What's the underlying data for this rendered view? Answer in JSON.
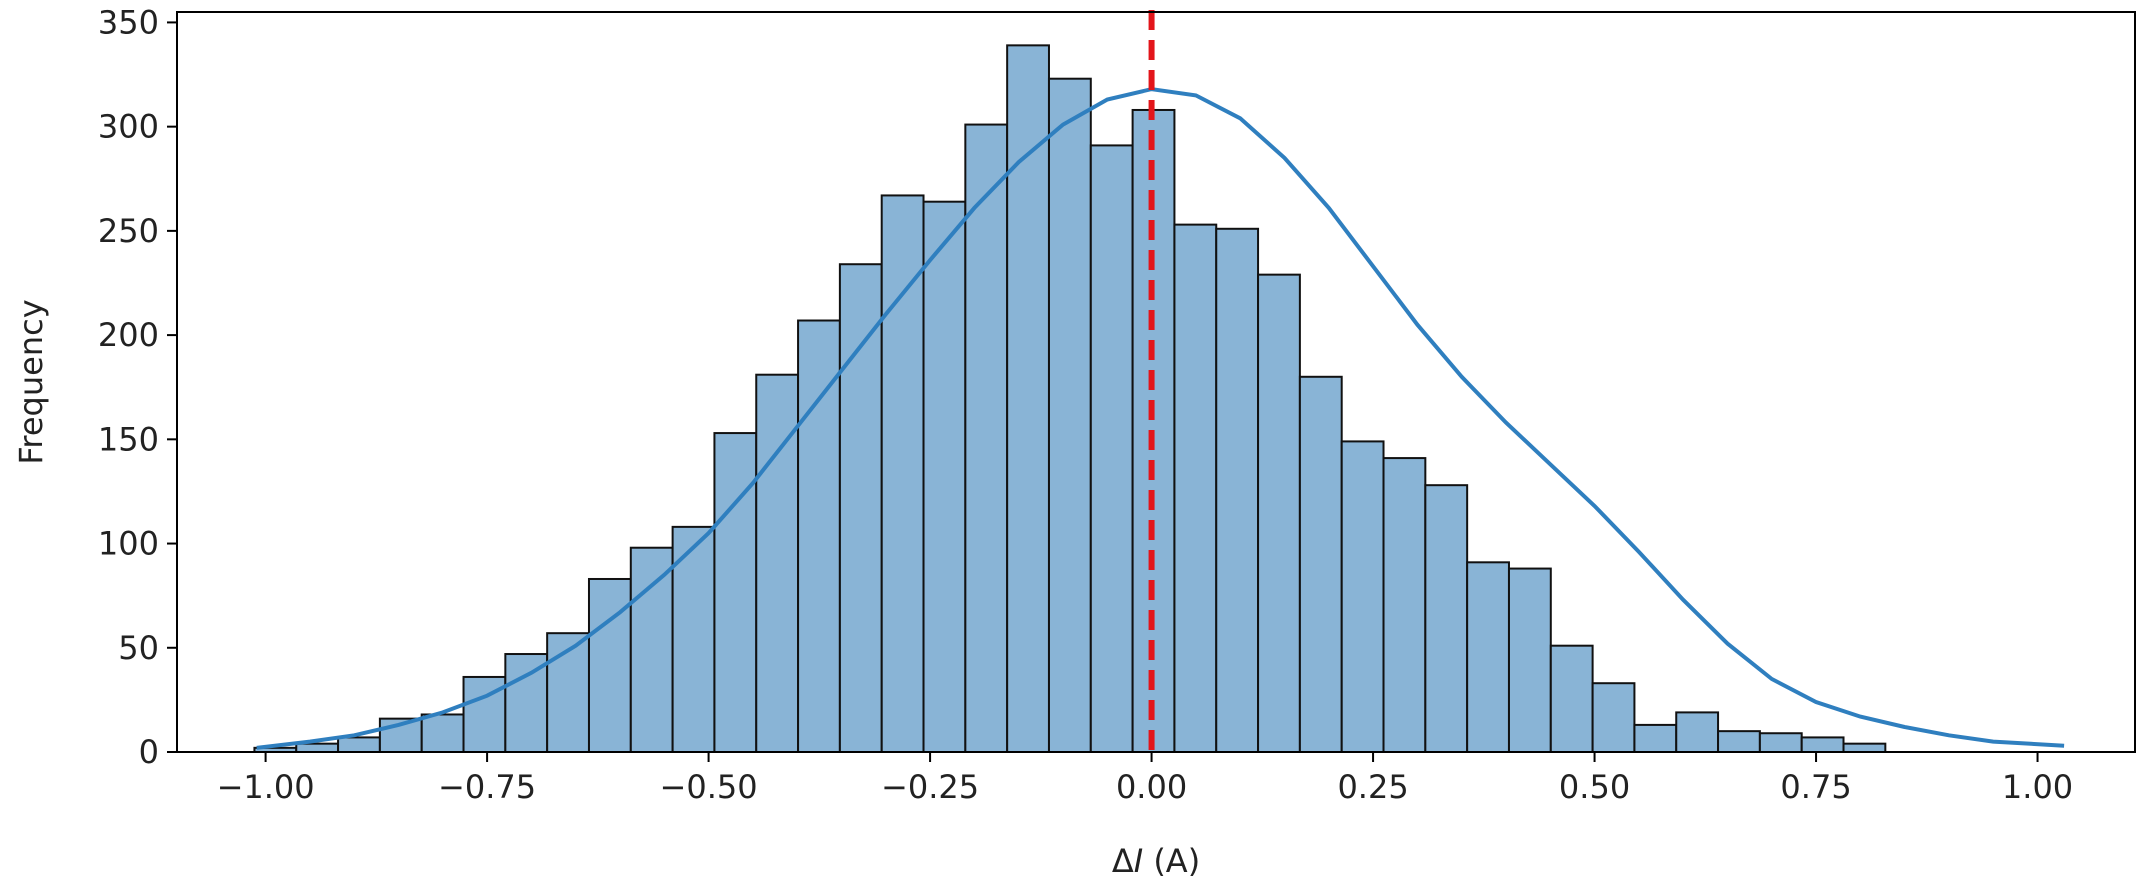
{
  "chart_data": {
    "type": "bar",
    "subtype": "histogram",
    "xlabel_prefix": "Δ",
    "xlabel_var": "I",
    "xlabel_suffix": " (A)",
    "ylabel": "Frequency",
    "xlim": [
      -1.1,
      1.11
    ],
    "ylim": [
      0,
      355
    ],
    "xticks": [
      -1.0,
      -0.75,
      -0.5,
      -0.25,
      0.0,
      0.25,
      0.5,
      0.75,
      1.0
    ],
    "xtick_labels": [
      "−1.00",
      "−0.75",
      "−0.50",
      "−0.25",
      "0.00",
      "0.25",
      "0.50",
      "0.75",
      "1.00"
    ],
    "yticks": [
      0,
      50,
      100,
      150,
      200,
      250,
      300,
      350
    ],
    "ytick_labels": [
      "0",
      "50",
      "100",
      "150",
      "200",
      "250",
      "300",
      "350"
    ],
    "bin_start": -1.0126,
    "bin_width": 0.0472,
    "counts": [
      2,
      4,
      7,
      16,
      18,
      36,
      47,
      57,
      83,
      98,
      108,
      153,
      181,
      207,
      234,
      267,
      264,
      301,
      339,
      323,
      291,
      308,
      253,
      251,
      229,
      180,
      149,
      141,
      128,
      91,
      88,
      51,
      33,
      13,
      19,
      10,
      9,
      7,
      4
    ],
    "kde": {
      "x": [
        -1.01,
        -0.95,
        -0.9,
        -0.85,
        -0.8,
        -0.75,
        -0.7,
        -0.65,
        -0.6,
        -0.55,
        -0.5,
        -0.45,
        -0.4,
        -0.35,
        -0.3,
        -0.25,
        -0.2,
        -0.15,
        -0.1,
        -0.05,
        0.0,
        0.05,
        0.1,
        0.15,
        0.2,
        0.25,
        0.3,
        0.35,
        0.4,
        0.45,
        0.5,
        0.55,
        0.6,
        0.65,
        0.7,
        0.75,
        0.8,
        0.85,
        0.9,
        0.95,
        1.03
      ],
      "y": [
        2,
        5,
        8,
        13,
        19,
        27,
        38,
        51,
        67,
        85,
        105,
        129,
        156,
        183,
        210,
        236,
        261,
        283,
        301,
        313,
        318,
        315,
        304,
        285,
        261,
        233,
        205,
        180,
        158,
        138,
        118,
        96,
        73,
        52,
        35,
        24,
        17,
        12,
        8,
        5,
        3
      ]
    },
    "refline_x": 0.0,
    "bar_color": "#89b4d6",
    "bar_edge_color": "#111111",
    "kde_color": "#2f7fbf",
    "refline_color": "#e3151a",
    "grid": false,
    "legend": "none"
  }
}
